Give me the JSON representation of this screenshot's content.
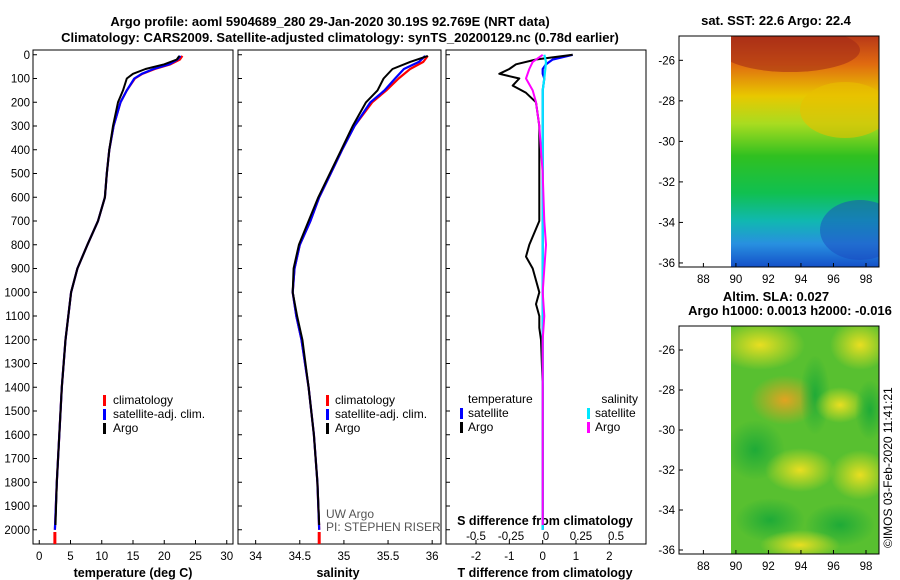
{
  "title_line1": "Argo profile: aoml 5904689_280 29-Jan-2020 30.19S 92.769E (NRT data)",
  "title_line2": "Climatology: CARS2009. Satellite-adjusted climatology: synTS_20200129.nc (0.78d earlier)",
  "colors": {
    "climatology": "#ff0000",
    "satellite": "#0000ff",
    "argo": "#000000",
    "sat_salinity": "#00e8ff",
    "argo_salinity": "#ff00ff"
  },
  "depth_ticks": [
    "0",
    "100",
    "200",
    "300",
    "400",
    "500",
    "600",
    "700",
    "800",
    "900",
    "1000",
    "1100",
    "1200",
    "1300",
    "1400",
    "1500",
    "1600",
    "1700",
    "1800",
    "1900",
    "2000"
  ],
  "legend_a": {
    "climatology": "climatology",
    "satellite": "satellite-adj. clim.",
    "argo": "Argo"
  },
  "legend_c": {
    "head_left": "temperature",
    "head_right": "salinity",
    "sat_left": "satellite",
    "argo_left": "Argo",
    "sat_right": "satellite",
    "argo_right": "Argo"
  },
  "credits": {
    "line1": "UW Argo",
    "line2": "PI: STEPHEN RISER"
  },
  "s_diff_label": "S difference from climatology",
  "s_diff_ticks": [
    "-0.5",
    "-0.25",
    "0",
    "0.25",
    "0.5"
  ],
  "map1": {
    "title": "sat. SST: 22.6 Argo: 22.4",
    "y_ticks": [
      "-26",
      "-28",
      "-30",
      "-32",
      "-34",
      "-36"
    ],
    "x_ticks": [
      "88",
      "90",
      "92",
      "94",
      "96",
      "98"
    ]
  },
  "map2": {
    "title1": "Altim. SLA: 0.027",
    "title2": "Argo h1000: 0.0013 h2000: -0.016",
    "y_ticks": [
      "-26",
      "-28",
      "-30",
      "-32",
      "-34",
      "-36"
    ],
    "x_ticks": [
      "88",
      "90",
      "92",
      "94",
      "96",
      "98"
    ]
  },
  "timestamp": "©IMOS 03-Feb-2020 11:41:21",
  "chart_data": [
    {
      "type": "line",
      "xlabel": "temperature (deg C)",
      "ylabel": "",
      "xlim": [
        -1,
        31
      ],
      "ylim": [
        2060,
        -20
      ],
      "x_ticks": [
        "0",
        "5",
        "10",
        "15",
        "20",
        "25",
        "30"
      ],
      "series": [
        {
          "name": "climatology",
          "depth": [
            5,
            20,
            40,
            60,
            80,
            100,
            150,
            200,
            300,
            400,
            500,
            600,
            700,
            800,
            900,
            1000,
            1200,
            1400,
            1600,
            1800,
            2000
          ],
          "values": [
            22.9,
            22.5,
            21.0,
            18.5,
            16.5,
            15.3,
            14.0,
            13.0,
            11.9,
            11.2,
            10.8,
            10.5,
            9.4,
            7.7,
            6.1,
            5.1,
            4.2,
            3.6,
            3.2,
            2.8,
            2.5
          ]
        },
        {
          "name": "satellite-adj. clim.",
          "depth": [
            5,
            20,
            40,
            60,
            80,
            100,
            150,
            200,
            300,
            400,
            500,
            600,
            700,
            800,
            900,
            1000,
            1200,
            1400,
            1600,
            1800,
            2000
          ],
          "values": [
            22.6,
            22.1,
            20.8,
            18.3,
            16.4,
            15.2,
            14.0,
            13.0,
            11.9,
            11.2,
            10.8,
            10.5,
            9.4,
            7.7,
            6.1,
            5.1,
            4.2,
            3.6,
            3.2,
            2.8,
            2.5
          ]
        },
        {
          "name": "Argo",
          "depth": [
            5,
            20,
            40,
            60,
            80,
            100,
            150,
            200,
            300,
            400,
            500,
            600,
            700,
            800,
            900,
            1000,
            1200,
            1400,
            1600,
            1800,
            1980
          ],
          "values": [
            22.4,
            22.0,
            20.0,
            17.0,
            15.0,
            14.0,
            13.4,
            12.6,
            11.8,
            11.2,
            10.8,
            10.5,
            9.4,
            7.7,
            6.1,
            5.1,
            4.2,
            3.6,
            3.2,
            2.8,
            2.6
          ]
        }
      ]
    },
    {
      "type": "line",
      "xlabel": "salinity",
      "ylabel": "",
      "xlim": [
        33.8,
        36.1
      ],
      "ylim": [
        2060,
        -20
      ],
      "x_ticks": [
        "34",
        "34.5",
        "35",
        "35.5",
        "36"
      ],
      "series": [
        {
          "name": "climatology",
          "depth": [
            5,
            30,
            60,
            100,
            150,
            200,
            300,
            400,
            500,
            600,
            700,
            800,
            900,
            1000,
            1100,
            1200,
            1400,
            1600,
            1800,
            2000
          ],
          "values": [
            35.95,
            35.9,
            35.75,
            35.62,
            35.48,
            35.32,
            35.12,
            34.98,
            34.85,
            34.72,
            34.62,
            34.5,
            34.44,
            34.42,
            34.46,
            34.52,
            34.6,
            34.66,
            34.7,
            34.72
          ]
        },
        {
          "name": "satellite-adj. clim.",
          "depth": [
            5,
            30,
            60,
            100,
            150,
            200,
            300,
            400,
            500,
            600,
            700,
            800,
            900,
            1000,
            1100,
            1200,
            1400,
            1600,
            1800,
            2000
          ],
          "values": [
            35.92,
            35.85,
            35.68,
            35.58,
            35.46,
            35.3,
            35.12,
            34.98,
            34.85,
            34.72,
            34.62,
            34.5,
            34.44,
            34.42,
            34.46,
            34.52,
            34.6,
            34.66,
            34.7,
            34.72
          ]
        },
        {
          "name": "Argo",
          "depth": [
            5,
            30,
            60,
            100,
            150,
            200,
            300,
            400,
            500,
            600,
            700,
            800,
            900,
            1000,
            1100,
            1200,
            1400,
            1600,
            1800,
            1980
          ],
          "values": [
            35.95,
            35.75,
            35.55,
            35.45,
            35.38,
            35.25,
            35.1,
            34.97,
            34.84,
            34.71,
            34.6,
            34.49,
            34.43,
            34.42,
            34.47,
            34.53,
            34.6,
            34.66,
            34.7,
            34.72
          ]
        }
      ]
    },
    {
      "type": "line",
      "xlabel": "T difference from climatology",
      "ylabel": "",
      "xlim": [
        -2.9,
        3.1
      ],
      "ylim": [
        2060,
        -20
      ],
      "x_ticks": [
        "-2",
        "-1",
        "0",
        "1",
        "2"
      ],
      "series": [
        {
          "name": "temperature satellite",
          "depth": [
            0,
            20,
            40,
            60,
            80,
            100,
            150,
            200,
            300,
            400,
            500,
            600,
            700,
            800,
            900,
            1000,
            1200,
            1400,
            1600,
            1800,
            2000
          ],
          "values": [
            0.9,
            0.3,
            0.1,
            0.0,
            0.0,
            0.05,
            0.0,
            0.0,
            0.0,
            0.0,
            0.0,
            0.0,
            0.0,
            0.0,
            0.0,
            0.0,
            0.0,
            0.0,
            0.0,
            0.0,
            0.0
          ]
        },
        {
          "name": "temperature Argo",
          "depth": [
            0,
            20,
            40,
            60,
            80,
            100,
            130,
            160,
            200,
            300,
            400,
            500,
            600,
            700,
            800,
            850,
            900,
            950,
            1000,
            1050,
            1100,
            1150,
            1200,
            1400,
            1600,
            1800,
            1980
          ],
          "values": [
            0.9,
            -0.2,
            -0.8,
            -1.0,
            -1.3,
            -0.7,
            -0.9,
            -0.5,
            -0.2,
            -0.1,
            -0.1,
            -0.1,
            -0.1,
            -0.1,
            -0.4,
            -0.5,
            -0.3,
            -0.2,
            -0.1,
            -0.2,
            -0.1,
            -0.1,
            -0.05,
            0.0,
            0.0,
            0.0,
            0.0
          ]
        },
        {
          "name": "salinity satellite",
          "depth": [
            0,
            30,
            60,
            100,
            150,
            200,
            300,
            400,
            600,
            800,
            1000,
            1200,
            1400,
            1600,
            1800,
            2000
          ],
          "values": [
            0.05,
            0.1,
            0.08,
            0.05,
            0.0,
            0.0,
            0.0,
            0.0,
            0.0,
            0.0,
            0.0,
            0.0,
            0.0,
            0.0,
            0.0,
            0.0
          ]
        },
        {
          "name": "salinity Argo",
          "depth": [
            0,
            30,
            60,
            100,
            150,
            200,
            300,
            400,
            500,
            700,
            800,
            900,
            1000,
            1100,
            1200,
            1400,
            1600,
            1800,
            1980
          ],
          "values": [
            0.0,
            -0.3,
            -0.4,
            -0.5,
            -0.3,
            -0.2,
            -0.1,
            -0.05,
            0.0,
            0.05,
            0.1,
            0.05,
            0.0,
            0.05,
            0.0,
            0.0,
            0.0,
            0.0,
            0.0
          ]
        }
      ]
    },
    {
      "type": "heatmap",
      "title": "sat. SST: 22.6 Argo: 22.4",
      "xlabel": "",
      "ylabel": "",
      "xlim": [
        86.5,
        98.8
      ],
      "ylim": [
        -36.2,
        -24.8
      ],
      "data_extent_lon": [
        90,
        98.8
      ],
      "grid_lat": [
        -25.5,
        -27.5,
        -29.5,
        -31.5,
        -33.5,
        -35.5
      ],
      "grid_lon": [
        91,
        93,
        95,
        97
      ],
      "values": [
        [
          24.0,
          24.2,
          23.9,
          23.6
        ],
        [
          22.8,
          22.9,
          22.6,
          22.5
        ],
        [
          22.0,
          21.9,
          22.2,
          21.8
        ],
        [
          21.5,
          21.6,
          21.4,
          21.3
        ],
        [
          21.0,
          20.8,
          20.9,
          21.0
        ],
        [
          20.5,
          20.4,
          20.3,
          20.2
        ]
      ],
      "argo_position": [
        92.77,
        -30.19
      ]
    },
    {
      "type": "heatmap",
      "title": "Altim. SLA: 0.027",
      "xlabel": "",
      "ylabel": "",
      "xlim": [
        86.5,
        98.8
      ],
      "ylim": [
        -36.2,
        -24.8
      ],
      "data_extent_lon": [
        90,
        98.8
      ],
      "grid_lat": [
        -25.5,
        -27.5,
        -29.5,
        -31.5,
        -33.5,
        -35.5
      ],
      "grid_lon": [
        91,
        93,
        95,
        97
      ],
      "values": [
        [
          0.03,
          0.05,
          0.02,
          0.04
        ],
        [
          0.01,
          0.04,
          -0.01,
          0.03
        ],
        [
          0.02,
          0.01,
          0.03,
          0.0
        ],
        [
          0.01,
          0.03,
          0.02,
          0.01
        ],
        [
          -0.01,
          0.01,
          0.02,
          0.0
        ],
        [
          0.0,
          -0.01,
          0.01,
          0.02
        ]
      ],
      "argo_position": [
        92.77,
        -30.19
      ]
    }
  ]
}
